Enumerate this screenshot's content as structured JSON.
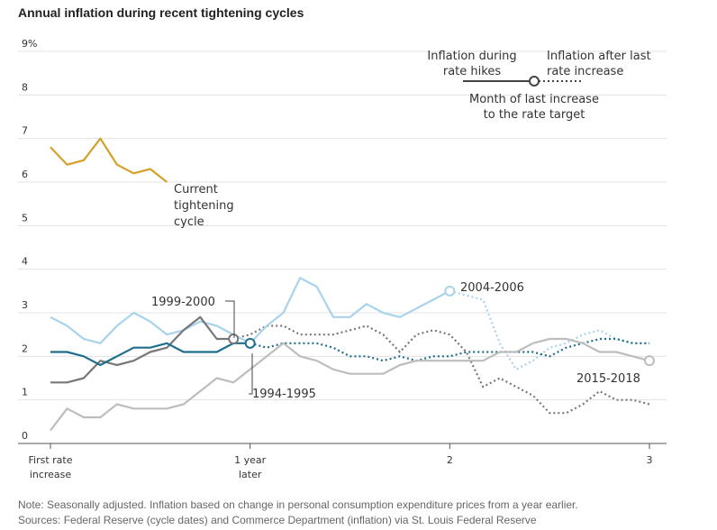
{
  "title": "Annual inflation during recent tightening cycles",
  "notes": [
    "Note: Seasonally adjusted. Inflation based on change in personal consumption expenditure prices from a year earlier.",
    "Sources: Federal Reserve (cycle dates) and Commerce Department (inflation) via St. Louis Federal Reserve"
  ],
  "chart_data": {
    "type": "line",
    "title": "Annual inflation during recent tightening cycles",
    "xlabel": "",
    "ylabel": "",
    "xlim": [
      0,
      36
    ],
    "ylim": [
      0,
      9
    ],
    "grid": true,
    "x_ticks": [
      {
        "x": 0,
        "lines": [
          "First rate",
          "increase"
        ]
      },
      {
        "x": 12,
        "lines": [
          "1 year",
          "later"
        ]
      },
      {
        "x": 24,
        "lines": [
          "2"
        ]
      },
      {
        "x": 36,
        "lines": [
          "3"
        ]
      }
    ],
    "y_ticks": [
      {
        "y": 0,
        "label": "0"
      },
      {
        "y": 1,
        "label": "1"
      },
      {
        "y": 2,
        "label": "2"
      },
      {
        "y": 3,
        "label": "3"
      },
      {
        "y": 4,
        "label": "4"
      },
      {
        "y": 5,
        "label": "5"
      },
      {
        "y": 6,
        "label": "6"
      },
      {
        "y": 7,
        "label": "7"
      },
      {
        "y": 8,
        "label": "8"
      },
      {
        "y": 9,
        "label": "9%"
      }
    ],
    "legend": {
      "during_lines": [
        "Inflation during",
        "rate hikes"
      ],
      "after_lines": [
        "Inflation after last",
        "rate increase"
      ],
      "marker_lines": [
        "Month of last increase",
        "to the rate target"
      ],
      "position": "top-right"
    },
    "series": [
      {
        "name": "Current tightening cycle",
        "label_lines": [
          "Current",
          "tightening",
          "cycle"
        ],
        "color": "#d4a02a",
        "hike_points": [
          [
            0,
            6.8
          ],
          [
            1,
            6.4
          ],
          [
            2,
            6.5
          ],
          [
            3,
            7.0
          ],
          [
            4,
            6.4
          ],
          [
            5,
            6.2
          ],
          [
            6,
            6.3
          ],
          [
            7,
            6.0
          ]
        ],
        "after_points": [],
        "marker": null
      },
      {
        "name": "2004-2006",
        "label_lines": [
          "2004-2006"
        ],
        "color": "#a9d3ea",
        "hike_points": [
          [
            0,
            2.9
          ],
          [
            1,
            2.7
          ],
          [
            2,
            2.4
          ],
          [
            3,
            2.3
          ],
          [
            4,
            2.7
          ],
          [
            5,
            3.0
          ],
          [
            6,
            2.8
          ],
          [
            7,
            2.5
          ],
          [
            8,
            2.6
          ],
          [
            9,
            2.8
          ],
          [
            10,
            2.7
          ],
          [
            11,
            2.5
          ],
          [
            12,
            2.3
          ],
          [
            13,
            2.7
          ],
          [
            14,
            3.0
          ],
          [
            15,
            3.8
          ],
          [
            16,
            3.6
          ],
          [
            17,
            2.9
          ],
          [
            18,
            2.9
          ],
          [
            19,
            3.2
          ],
          [
            20,
            3.0
          ],
          [
            21,
            2.9
          ],
          [
            22,
            3.1
          ],
          [
            23,
            3.3
          ],
          [
            24,
            3.5
          ]
        ],
        "after_points": [
          [
            24,
            3.5
          ],
          [
            25,
            3.4
          ],
          [
            26,
            3.3
          ],
          [
            27,
            2.3
          ],
          [
            28,
            1.7
          ],
          [
            29,
            1.9
          ],
          [
            30,
            2.2
          ],
          [
            31,
            2.3
          ],
          [
            32,
            2.5
          ],
          [
            33,
            2.6
          ],
          [
            34,
            2.4
          ],
          [
            35,
            2.3
          ],
          [
            36,
            2.3
          ]
        ],
        "marker": [
          24,
          3.5
        ]
      },
      {
        "name": "1999-2000",
        "label_lines": [
          "1999-2000"
        ],
        "color": "#777777",
        "hike_points": [
          [
            0,
            1.4
          ],
          [
            1,
            1.4
          ],
          [
            2,
            1.5
          ],
          [
            3,
            1.9
          ],
          [
            4,
            1.8
          ],
          [
            5,
            1.9
          ],
          [
            6,
            2.1
          ],
          [
            7,
            2.2
          ],
          [
            8,
            2.6
          ],
          [
            9,
            2.9
          ],
          [
            10,
            2.4
          ],
          [
            11,
            2.4
          ]
        ],
        "after_points": [
          [
            11,
            2.4
          ],
          [
            12,
            2.5
          ],
          [
            13,
            2.7
          ],
          [
            14,
            2.7
          ],
          [
            15,
            2.5
          ],
          [
            16,
            2.5
          ],
          [
            17,
            2.5
          ],
          [
            18,
            2.6
          ],
          [
            19,
            2.7
          ],
          [
            20,
            2.5
          ],
          [
            21,
            2.1
          ],
          [
            22,
            2.5
          ],
          [
            23,
            2.6
          ],
          [
            24,
            2.5
          ],
          [
            25,
            2.1
          ],
          [
            26,
            1.3
          ],
          [
            27,
            1.5
          ],
          [
            28,
            1.3
          ],
          [
            29,
            1.1
          ],
          [
            30,
            0.7
          ],
          [
            31,
            0.7
          ],
          [
            32,
            0.9
          ],
          [
            33,
            1.2
          ],
          [
            34,
            1.0
          ],
          [
            35,
            1.0
          ],
          [
            36,
            0.9
          ]
        ],
        "marker": [
          11,
          2.4
        ]
      },
      {
        "name": "1994-1995",
        "label_lines": [
          "1994-1995"
        ],
        "color": "#1f6e8c",
        "hike_points": [
          [
            0,
            2.1
          ],
          [
            1,
            2.1
          ],
          [
            2,
            2.0
          ],
          [
            3,
            1.8
          ],
          [
            4,
            2.0
          ],
          [
            5,
            2.2
          ],
          [
            6,
            2.2
          ],
          [
            7,
            2.3
          ],
          [
            8,
            2.1
          ],
          [
            9,
            2.1
          ],
          [
            10,
            2.1
          ],
          [
            11,
            2.3
          ],
          [
            12,
            2.3
          ]
        ],
        "after_points": [
          [
            12,
            2.3
          ],
          [
            13,
            2.2
          ],
          [
            14,
            2.3
          ],
          [
            15,
            2.3
          ],
          [
            16,
            2.3
          ],
          [
            17,
            2.2
          ],
          [
            18,
            2.0
          ],
          [
            19,
            2.0
          ],
          [
            20,
            1.9
          ],
          [
            21,
            2.0
          ],
          [
            22,
            1.9
          ],
          [
            23,
            2.0
          ],
          [
            24,
            2.0
          ],
          [
            25,
            2.1
          ],
          [
            26,
            2.1
          ],
          [
            27,
            2.1
          ],
          [
            28,
            2.1
          ],
          [
            29,
            2.1
          ],
          [
            30,
            2.0
          ],
          [
            31,
            2.2
          ],
          [
            32,
            2.3
          ],
          [
            33,
            2.4
          ],
          [
            34,
            2.4
          ],
          [
            35,
            2.3
          ],
          [
            36,
            2.3
          ]
        ],
        "marker": [
          12,
          2.3
        ]
      },
      {
        "name": "2015-2018",
        "label_lines": [
          "2015-2018"
        ],
        "color": "#bdbdbd",
        "hike_points": [
          [
            0,
            0.3
          ],
          [
            1,
            0.8
          ],
          [
            2,
            0.6
          ],
          [
            3,
            0.6
          ],
          [
            4,
            0.9
          ],
          [
            5,
            0.8
          ],
          [
            6,
            0.8
          ],
          [
            7,
            0.8
          ],
          [
            8,
            0.9
          ],
          [
            9,
            1.2
          ],
          [
            10,
            1.5
          ],
          [
            11,
            1.4
          ],
          [
            12,
            1.7
          ],
          [
            13,
            2.0
          ],
          [
            14,
            2.3
          ],
          [
            15,
            2.0
          ],
          [
            16,
            1.9
          ],
          [
            17,
            1.7
          ],
          [
            18,
            1.6
          ],
          [
            19,
            1.6
          ],
          [
            20,
            1.6
          ],
          [
            21,
            1.8
          ],
          [
            22,
            1.9
          ],
          [
            23,
            1.9
          ],
          [
            24,
            1.9
          ],
          [
            25,
            1.9
          ],
          [
            26,
            1.9
          ],
          [
            27,
            2.1
          ],
          [
            28,
            2.1
          ],
          [
            29,
            2.3
          ],
          [
            30,
            2.4
          ],
          [
            31,
            2.4
          ],
          [
            32,
            2.3
          ],
          [
            33,
            2.1
          ],
          [
            34,
            2.1
          ],
          [
            35,
            2.0
          ],
          [
            36,
            1.9
          ]
        ],
        "after_points": [],
        "marker": [
          36,
          1.9
        ]
      }
    ]
  }
}
